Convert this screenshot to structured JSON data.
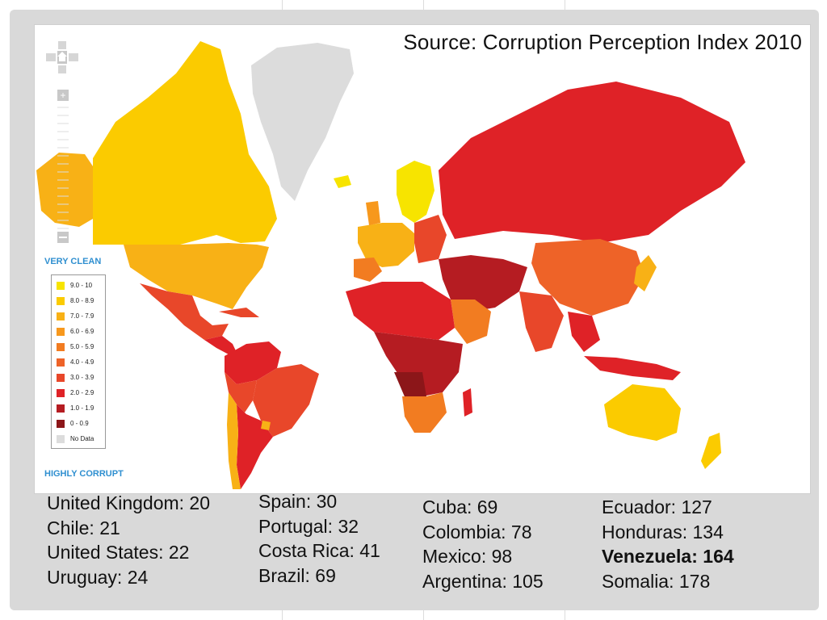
{
  "source_text": "Source: Corruption Perception Index 2010",
  "legend": {
    "top_label": "VERY CLEAN",
    "bottom_label": "HIGHLY CORRUPT",
    "items": [
      {
        "label": "9.0 - 10",
        "color": "#f7e400"
      },
      {
        "label": "8.0 - 8.9",
        "color": "#fbcb00"
      },
      {
        "label": "7.0 - 7.9",
        "color": "#f8b116"
      },
      {
        "label": "6.0 - 6.9",
        "color": "#f7981d"
      },
      {
        "label": "5.0 - 5.9",
        "color": "#f27c21"
      },
      {
        "label": "4.0 - 4.9",
        "color": "#ee6328"
      },
      {
        "label": "3.0 - 3.9",
        "color": "#e8472a"
      },
      {
        "label": "2.0 - 2.9",
        "color": "#df2227"
      },
      {
        "label": "1.0 - 1.9",
        "color": "#b51c22"
      },
      {
        "label": "0 - 0.9",
        "color": "#8c1619"
      },
      {
        "label": "No Data",
        "color": "#dcdcdc"
      }
    ]
  },
  "rankings": {
    "col1": [
      "United Kingdom: 20",
      "Chile: 21",
      "United States: 22",
      "Uruguay: 24"
    ],
    "col2": [
      "Spain: 30",
      "Portugal: 32",
      "Costa Rica: 41",
      "Brazil: 69"
    ],
    "col3": [
      "Cuba: 69",
      "Colombia: 78",
      "Mexico: 98",
      "Argentina: 105"
    ],
    "col4": [
      "Ecuador: 127",
      "Honduras: 134",
      "Venezuela: 164",
      "Somalia: 178"
    ]
  },
  "highlight": "Venezuela: 164"
}
